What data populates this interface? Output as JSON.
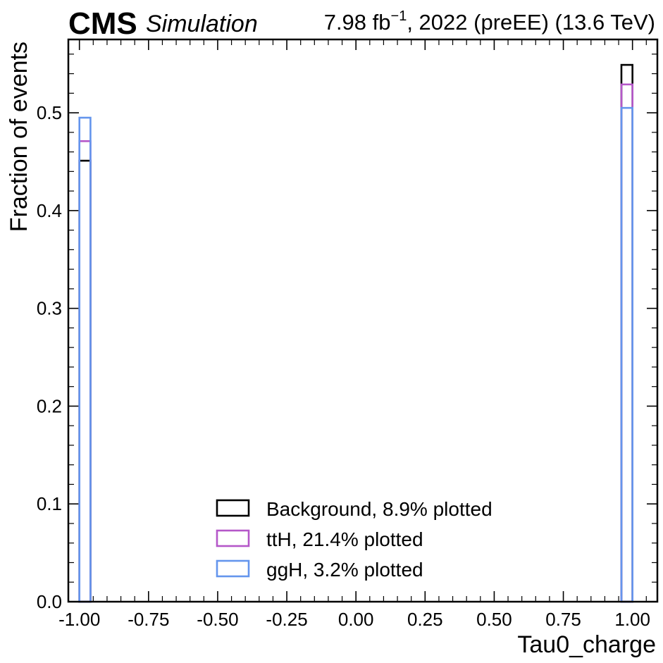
{
  "header": {
    "experiment": "CMS",
    "status": "Simulation",
    "lumi_text": "7.98 fb",
    "lumi_exp": "−1",
    "lumi_rest": ", 2022 (preEE) (13.6 TeV)"
  },
  "chart_data": {
    "type": "histogram-step",
    "xlabel": "Tau0_charge",
    "ylabel": "Fraction of events",
    "xlim": [
      -1.04,
      1.09
    ],
    "ylim": [
      0.0,
      0.575
    ],
    "x_ticks": [
      -1.0,
      -0.75,
      -0.5,
      -0.25,
      0.0,
      0.25,
      0.5,
      0.75,
      1.0
    ],
    "x_tick_labels": [
      "-1.00",
      "-0.75",
      "-0.50",
      "-0.25",
      "0.00",
      "0.25",
      "0.50",
      "0.75",
      "1.00"
    ],
    "y_ticks": [
      0.0,
      0.1,
      0.2,
      0.3,
      0.4,
      0.5
    ],
    "y_tick_labels": [
      "0.0",
      "0.1",
      "0.2",
      "0.3",
      "0.4",
      "0.5"
    ],
    "bin_width": 0.04,
    "bins": [
      {
        "low": -1.0,
        "high": -0.96
      },
      {
        "low": 0.96,
        "high": 1.0
      }
    ],
    "series": [
      {
        "name": "Background, 8.9% plotted",
        "color": "#000000",
        "values": [
          0.451,
          0.549
        ]
      },
      {
        "name": "ttH, 21.4% plotted",
        "color": "#b557c9",
        "values": [
          0.471,
          0.529
        ]
      },
      {
        "name": "ggH, 3.2% plotted",
        "color": "#6495ed",
        "values": [
          0.495,
          0.505
        ]
      }
    ],
    "legend_position": "lower-center",
    "grid": false
  }
}
